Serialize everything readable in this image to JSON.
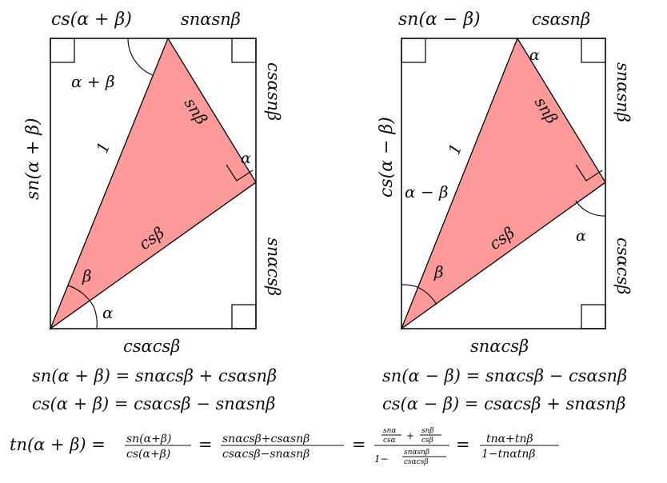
{
  "colors": {
    "triangle_fill": "#ff9a9a",
    "stroke": "#111111",
    "background": "#ffffff"
  },
  "left_diagram": {
    "top_left": "cs(α + β)",
    "top_right": "snαsnβ",
    "left_side": "sn(α + β)",
    "right_upper": "csαsnβ",
    "right_lower": "snαcsβ",
    "bottom": "csαcsβ",
    "angle_sum": "α + β",
    "hyp": "1",
    "side_sn": "snβ",
    "side_cs": "csβ",
    "angle_beta": "β",
    "angle_alpha_bottom": "α",
    "angle_alpha_right": "α"
  },
  "right_diagram": {
    "top_left": "sn(α − β)",
    "top_right": "csαsnβ",
    "left_side": "cs(α − β)",
    "right_upper": "snαsnβ",
    "right_lower": "csαcsβ",
    "bottom": "snαcsβ",
    "angle_diff": "α − β",
    "hyp": "1",
    "side_sn": "snβ",
    "side_cs": "csβ",
    "angle_beta": "β",
    "angle_alpha_top": "α",
    "angle_alpha_right": "α"
  },
  "equations": {
    "sn_sum": "sn(α + β) = snαcsβ + csαsnβ",
    "cs_sum": "cs(α + β) = csαcsβ − snαsnβ",
    "sn_diff": "sn(α − β) = snαcsβ − csαsnβ",
    "cs_diff": "cs(α − β) = csαcsβ + snαsnβ",
    "tn_lhs": "tn(α + β) =",
    "tn_f1_num": "sn(α+β)",
    "tn_f1_den": "cs(α+β)",
    "eq1": "=",
    "tn_f2_num": "snαcsβ+csαsnβ",
    "tn_f2_den": "csαcsβ−snαsnβ",
    "eq2": "=",
    "tn_f3_n1_num": "snα",
    "tn_f3_n1_den": "csα",
    "tn_f3_plus": "+",
    "tn_f3_n2_num": "snβ",
    "tn_f3_n2_den": "csβ",
    "tn_f3_one": "1−",
    "tn_f3_d_num": "snαsnβ",
    "tn_f3_d_den": "csαcsβ",
    "eq3": "=",
    "tn_f4_num": "tnα+tnβ",
    "tn_f4_den": "1−tnαtnβ"
  }
}
